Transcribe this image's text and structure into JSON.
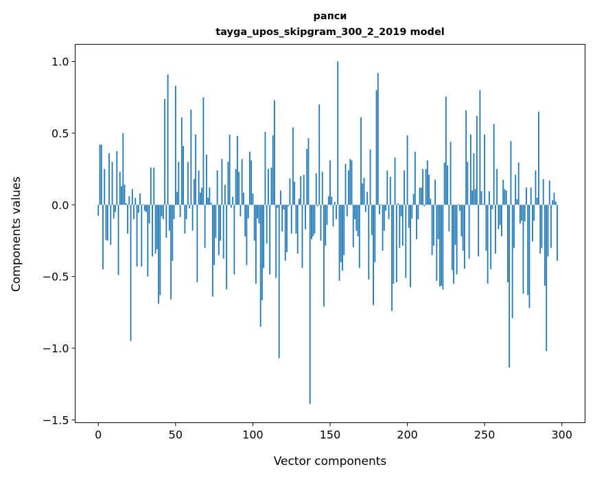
{
  "chart_data": {
    "type": "bar",
    "title": "рапси",
    "subtitle": "tayga_upos_skipgram_300_2_2019 model",
    "xlabel": "Vector components",
    "ylabel": "Components values",
    "xlim": [
      -15,
      315
    ],
    "ylim": [
      -1.52,
      1.12
    ],
    "xticks": [
      0,
      50,
      100,
      150,
      200,
      250,
      300
    ],
    "xtick_labels": [
      "0",
      "50",
      "100",
      "150",
      "200",
      "250",
      "300"
    ],
    "yticks": [
      -1.5,
      -1.0,
      -0.5,
      0.0,
      0.5,
      1.0
    ],
    "ytick_labels": [
      "−1.5",
      "−1.0",
      "−0.5",
      "0.0",
      "0.5",
      "1.0"
    ],
    "grid": false,
    "color": "#1f77b4",
    "values": [
      -0.076,
      0.42,
      0.42,
      -0.45,
      0.25,
      -0.245,
      -0.25,
      0.36,
      -0.28,
      0.3,
      -0.095,
      -0.05,
      0.375,
      -0.49,
      0.23,
      0.13,
      0.5,
      0.14,
      0.01,
      -0.2,
      0.06,
      -0.95,
      0.11,
      -0.1,
      0.05,
      -0.43,
      -0.055,
      0.08,
      -0.43,
      0.005,
      -0.04,
      -0.05,
      -0.5,
      -0.13,
      0.26,
      -0.36,
      0.26,
      -0.34,
      -0.31,
      -0.69,
      -0.63,
      -0.08,
      -0.1,
      0.74,
      -0.23,
      0.91,
      -0.18,
      -0.66,
      -0.39,
      -0.1,
      0.83,
      0.09,
      0.3,
      -0.085,
      0.61,
      0.41,
      -0.2,
      -0.1,
      0.3,
      -0.024,
      0.665,
      -0.18,
      0.18,
      0.49,
      -0.54,
      0.24,
      0.085,
      0.12,
      0.75,
      -0.3,
      0.35,
      0.05,
      0.12,
      0.014,
      -0.64,
      -0.42,
      -0.23,
      0.24,
      -0.35,
      -0.25,
      0.32,
      -0.375,
      0.14,
      -0.59,
      0.3,
      0.49,
      -0.02,
      0.057,
      -0.485,
      0.25,
      0.48,
      0.23,
      -0.08,
      0.32,
      0.085,
      -0.22,
      -0.42,
      -0.095,
      0.37,
      0.31,
      0.08,
      -0.25,
      -0.55,
      -0.095,
      -0.13,
      -0.85,
      -0.665,
      -0.44,
      0.51,
      -0.27,
      0.25,
      -0.485,
      0.26,
      0.485,
      0.73,
      -0.51,
      -0.02,
      -1.07,
      0.1,
      -0.185,
      -0.033,
      -0.39,
      -0.33,
      -0.01,
      0.185,
      -0.2,
      0.54,
      0.16,
      -0.2,
      -0.34,
      0.043,
      0.2,
      -0.44,
      0.21,
      -0.17,
      0.39,
      0.465,
      -1.39,
      -0.24,
      -0.22,
      -0.2,
      0.22,
      -0.01,
      0.7,
      -0.25,
      0.23,
      -0.71,
      -0.285,
      -0.14,
      0.06,
      0.31,
      0.057,
      -0.15,
      0.02,
      -0.1,
      1.0,
      -0.53,
      -0.4,
      -0.46,
      -0.35,
      0.285,
      -0.08,
      0.24,
      0.32,
      0.31,
      -0.295,
      -0.1,
      -0.18,
      -0.22,
      -0.44,
      0.61,
      0.15,
      0.19,
      -0.05,
      0.09,
      -0.52,
      0.385,
      -0.21,
      -0.7,
      -0.4,
      0.8,
      0.92,
      -0.066,
      0.005,
      -0.32,
      -0.18,
      -0.04,
      0.24,
      -0.1,
      0.195,
      -0.74,
      -0.55,
      0.33,
      -0.54,
      0.01,
      -0.3,
      -0.08,
      -0.285,
      0.24,
      -0.51,
      0.485,
      -0.16,
      -0.575,
      -0.095,
      0.076,
      0.37,
      -0.24,
      -0.1,
      0.12,
      0.12,
      0.25,
      -0.01,
      0.25,
      0.31,
      0.21,
      0.043,
      -0.35,
      -0.285,
      0.175,
      -0.53,
      -0.24,
      -0.57,
      -0.565,
      -0.59,
      0.295,
      0.755,
      0.275,
      -0.185,
      0.44,
      -0.455,
      -0.55,
      -0.28,
      -0.485,
      0.005,
      -0.043,
      -0.22,
      -0.32,
      -0.445,
      0.66,
      0.3,
      -0.375,
      0.49,
      0.1,
      0.36,
      0.11,
      0.62,
      -0.36,
      0.8,
      0.095,
      0.005,
      0.49,
      -0.32,
      -0.55,
      0.095,
      -0.45,
      -0.03,
      0.565,
      -0.34,
      0.25,
      -0.17,
      -0.14,
      -0.22,
      0.175,
      0.11,
      0.1,
      -0.54,
      -1.135,
      0.445,
      -0.79,
      -0.3,
      0.21,
      0.04,
      0.295,
      -0.13,
      -0.11,
      -0.62,
      -0.115,
      0.12,
      -0.63,
      -0.72,
      0.12,
      -0.255,
      -0.11,
      0.24,
      0.05,
      0.65,
      -0.34,
      -0.3,
      0.18,
      -0.565,
      -1.02,
      -0.36,
      0.17,
      -0.3,
      0.033,
      0.085,
      0.024,
      -0.39
    ]
  }
}
